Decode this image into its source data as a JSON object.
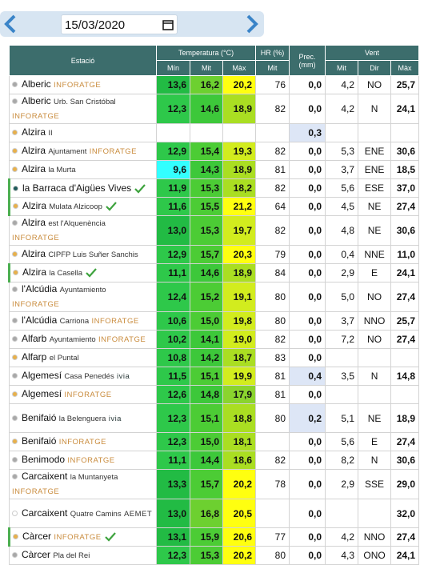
{
  "date": "15/03/2020",
  "header": {
    "station": "Estació",
    "temp": "Temperatura (°C)",
    "hr": "HR (%)",
    "prec": "Prec. (mm)",
    "wind": "Vent",
    "temp_sub": [
      "Mín",
      "Mit",
      "Màx"
    ],
    "hr_sub": "Mit",
    "wind_sub": [
      "Mit",
      "Dir",
      "Màx"
    ]
  },
  "rows": [
    {
      "name": "Alberic",
      "tag": "INFORATGE",
      "dot": "#a8a8a8",
      "cells": [
        "13,6",
        "16,2",
        "20,2",
        "76",
        "0,0",
        "4,2",
        "NO",
        "25,7"
      ]
    },
    {
      "name": "Alberic",
      "sub": "Urb. San Cristóbal",
      "tag": "INFORATGE",
      "dot": "#a8a8a8",
      "cells": [
        "12,3",
        "14,6",
        "18,9",
        "82",
        "0,0",
        "4,2",
        "N",
        "24,1"
      ]
    },
    {
      "name": "Alzira",
      "sub": "II",
      "dot": "#e8b04a",
      "cells": [
        null,
        null,
        null,
        null,
        "0,3",
        null,
        null,
        null
      ]
    },
    {
      "name": "Alzira",
      "sub": "Ajuntament",
      "tag": "INFORATGE",
      "dot": "#e8b04a",
      "cells": [
        "12,9",
        "15,4",
        "19,3",
        "82",
        "0,0",
        "5,3",
        "ENE",
        "30,6"
      ]
    },
    {
      "name": "Alzira",
      "sub": "la Murta",
      "dot": "#e8b04a",
      "cells": [
        "9,6",
        "14,3",
        "18,9",
        "81",
        "0,0",
        "3,7",
        "ENE",
        "18,5"
      ]
    },
    {
      "name": "la Barraca d'Aigües Vives",
      "check": true,
      "dot": "#1d5a5a",
      "cells": [
        "11,9",
        "15,3",
        "18,2",
        "82",
        "0,0",
        "5,6",
        "ESE",
        "37,0"
      ]
    },
    {
      "name": "Alzira",
      "sub": "Mulata Alzicoop",
      "check": true,
      "dot": "#e8b04a",
      "cells": [
        "11,6",
        "15,5",
        "21,2",
        "64",
        "0,0",
        "4,5",
        "NE",
        "27,4"
      ]
    },
    {
      "name": "Alzira",
      "sub": "est l'Alquenència",
      "tag": "INFORATGE",
      "dot": "#a8a8a8",
      "cells": [
        "13,0",
        "15,3",
        "19,7",
        "82",
        "0,0",
        "4,8",
        "NE",
        "30,6"
      ]
    },
    {
      "name": "Alzira",
      "sub": "CIPFP Luis Suñer Sanchis",
      "dot": "#e8b04a",
      "cells": [
        "12,9",
        "15,7",
        "20,3",
        "79",
        "0,0",
        "0,4",
        "NNE",
        "11,0"
      ]
    },
    {
      "name": "Alzira",
      "sub": "la Casella",
      "check": true,
      "dot": "#e8b04a",
      "cells": [
        "11,1",
        "14,6",
        "18,9",
        "84",
        "0,0",
        "2,9",
        "E",
        "24,1"
      ]
    },
    {
      "name": "l'Alcúdia",
      "sub": "Ayuntamiento",
      "tag": "INFORATGE",
      "dot": "#a8a8a8",
      "cells": [
        "12,4",
        "15,2",
        "19,1",
        "80",
        "0,0",
        "5,0",
        "NO",
        "27,4"
      ]
    },
    {
      "name": "l'Alcúdia",
      "sub": "Carriona",
      "tag": "INFORATGE",
      "dot": "#a8a8a8",
      "cells": [
        "10,6",
        "15,0",
        "19,8",
        "80",
        "0,0",
        "3,7",
        "NNO",
        "25,7"
      ]
    },
    {
      "name": "Alfarb",
      "sub": "Ayuntamiento",
      "tag": "INFORATGE",
      "dot": "#a8a8a8",
      "cells": [
        "10,2",
        "14,1",
        "19,0",
        "82",
        "0,0",
        "7,2",
        "NO",
        "27,4"
      ]
    },
    {
      "name": "Alfarp",
      "sub": "el Puntal",
      "dot": "#e8b04a",
      "cells": [
        "10,8",
        "14,2",
        "18,7",
        "83",
        "0,0",
        null,
        null,
        null
      ]
    },
    {
      "name": "Algemesí",
      "sub": "Casa Penedés",
      "tag": "ivia",
      "dot": "#a8a8a8",
      "cells": [
        "11,5",
        "15,1",
        "19,9",
        "81",
        "0,4",
        "3,5",
        "N",
        "14,8"
      ]
    },
    {
      "name": "Algemesí",
      "tag": "INFORATGE",
      "dot": "#e8b04a",
      "cells": [
        "12,6",
        "14,8",
        "17,9",
        "81",
        "0,0",
        null,
        null,
        null
      ]
    },
    {
      "name": "Benifaió",
      "sub": "la Belenguera",
      "tag": "ivia",
      "dot": "#a8a8a8",
      "cells": [
        "12,3",
        "15,1",
        "18,8",
        "80",
        "0,2",
        "5,1",
        "NE",
        "18,9"
      ]
    },
    {
      "name": "Benifaió",
      "tag": "INFORATGE",
      "dot": "#e8b04a",
      "cells": [
        "12,3",
        "15,0",
        "18,1",
        null,
        "0,0",
        "5,6",
        "E",
        "27,4"
      ]
    },
    {
      "name": "Benimodo",
      "tag": "INFORATGE",
      "dot": "#a8a8a8",
      "cells": [
        "11,1",
        "14,4",
        "18,6",
        "82",
        "0,0",
        "8,2",
        "N",
        "30,6"
      ]
    },
    {
      "name": "Carcaixent",
      "sub": "la Muntanyeta",
      "tag": "INFORATGE",
      "dot": "#a8a8a8",
      "cells": [
        "13,3",
        "15,7",
        "20,2",
        "78",
        "0,0",
        "2,9",
        "SSE",
        "29,0"
      ]
    },
    {
      "name": "Carcaixent",
      "sub": "Quatre Camins",
      "tag": "AEMET",
      "dot": "#ffffff",
      "cells": [
        "13,0",
        "16,8",
        "20,5",
        null,
        "0,0",
        null,
        null,
        "32,0"
      ]
    },
    {
      "name": "Càrcer",
      "tag": "INFORATGE",
      "check": true,
      "dot": "#e8b04a",
      "cells": [
        "13,1",
        "15,9",
        "20,6",
        "77",
        "0,0",
        "4,2",
        "NNO",
        "27,4"
      ]
    },
    {
      "name": "Càrcer",
      "sub": "Pla del Rei",
      "dot": "#a8a8a8",
      "cells": [
        "12,3",
        "15,3",
        "20,2",
        "80",
        "0,0",
        "4,3",
        "ONO",
        "24,1"
      ]
    }
  ]
}
